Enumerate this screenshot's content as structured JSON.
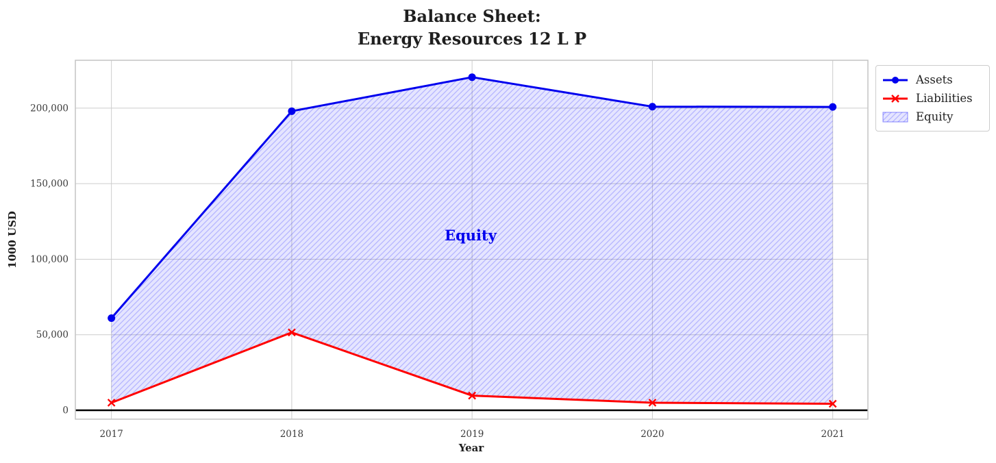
{
  "chart_data": {
    "type": "line",
    "title_lines": [
      "Balance Sheet:",
      "Energy Resources 12 L P"
    ],
    "xlabel": "Year",
    "ylabel": "1000 USD",
    "categories": [
      "2017",
      "2018",
      "2019",
      "2020",
      "2021"
    ],
    "series": [
      {
        "name": "Assets",
        "color": "#0000ee",
        "marker": "circle",
        "values": [
          61000,
          198000,
          220500,
          201000,
          200800
        ]
      },
      {
        "name": "Liabilities",
        "color": "#ff0000",
        "marker": "x",
        "values": [
          5000,
          51500,
          9700,
          5000,
          4300
        ]
      }
    ],
    "area": {
      "name": "Equity",
      "between": [
        "Liabilities",
        "Assets"
      ],
      "fill_color": "#0000ff",
      "fill_opacity": 0.1,
      "hatch": "//",
      "hatch_color": "rgba(0,0,255,0.22)"
    },
    "annotation": {
      "text": "Equity",
      "color": "#0000ee"
    },
    "y_ticks": [
      0,
      50000,
      100000,
      150000,
      200000
    ],
    "y_tick_labels": [
      "0",
      "50,000",
      "100,000",
      "150,000",
      "200,000"
    ],
    "x_tick_labels": [
      "2017",
      "2018",
      "2019",
      "2020",
      "2021"
    ],
    "xlim": [
      2016.8,
      2021.195
    ],
    "ylim": [
      -5900,
      231700
    ],
    "x_values": [
      2017,
      2018,
      2019,
      2020,
      2021
    ],
    "grid": true,
    "grid_color": "#cccccc",
    "spine_color": "#c4c4c4",
    "baseline": {
      "y": 0,
      "color": "#000000"
    },
    "legend": [
      "Assets",
      "Liabilities",
      "Equity"
    ],
    "legend_position": "outside upper right"
  }
}
